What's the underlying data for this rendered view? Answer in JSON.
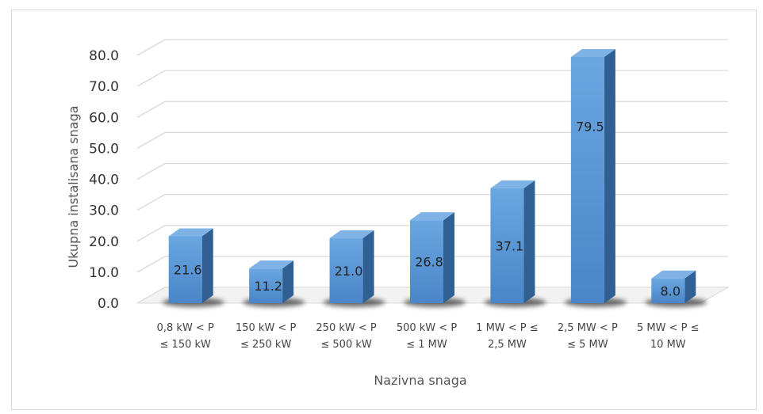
{
  "chart_data": {
    "type": "bar",
    "style": "3d-column",
    "categories": [
      [
        "0,8 kW < P",
        "≤ 150 kW"
      ],
      [
        "150 kW < P",
        "≤ 250 kW"
      ],
      [
        "250 kW < P",
        "≤ 500 kW"
      ],
      [
        "500 kW < P",
        "≤ 1 MW"
      ],
      [
        "1 MW < P ≤",
        "2,5 MW"
      ],
      [
        "2,5 MW < P",
        "≤ 5 MW"
      ],
      [
        "5 MW < P ≤",
        "10 MW"
      ]
    ],
    "values": [
      21.6,
      11.2,
      21.0,
      26.8,
      37.1,
      79.5,
      8.0
    ],
    "data_labels": [
      "21.6",
      "11.2",
      "21.0",
      "26.8",
      "37.1",
      "79.5",
      "8.0"
    ],
    "yticks": [
      "0.0",
      "10.0",
      "20.0",
      "30.0",
      "40.0",
      "50.0",
      "60.0",
      "70.0",
      "80.0"
    ],
    "ylim": [
      0,
      80
    ],
    "xlabel": "Nazivna snaga",
    "ylabel": "Ukupna instalisana snaga",
    "grid": true,
    "legend": "none",
    "colors": {
      "bar_front_top": "#6aa6e0",
      "bar_front_bottom": "#4a86c8",
      "bar_side": "#2f5f93",
      "bar_top": "#7fb3e6",
      "grid": "#d9d9d9"
    }
  }
}
